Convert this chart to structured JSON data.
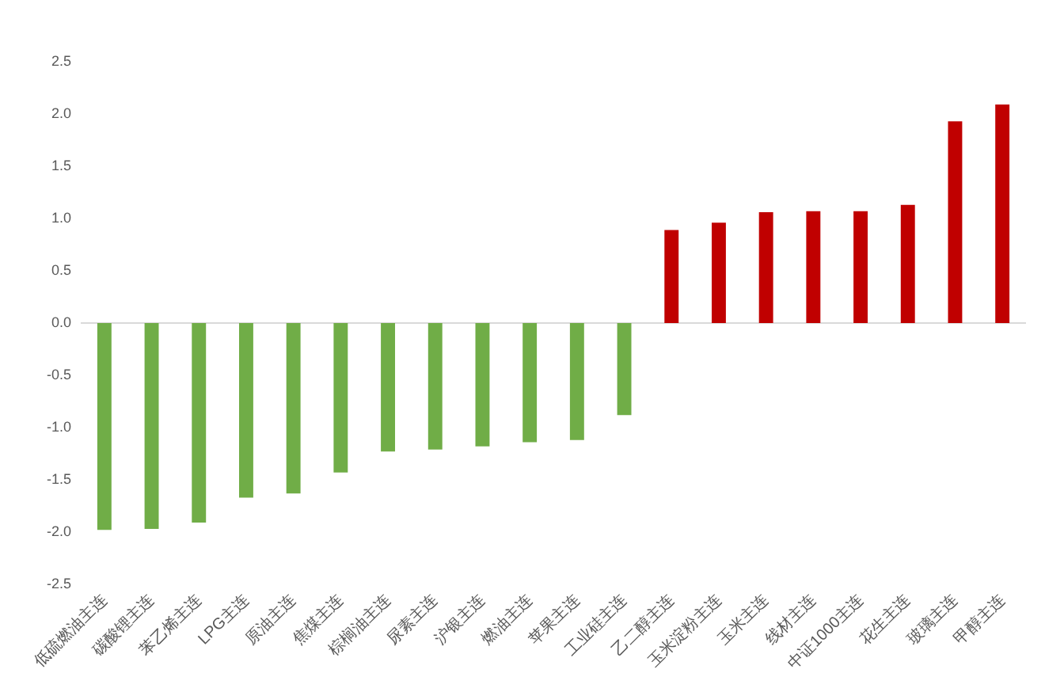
{
  "chart_data": {
    "type": "bar",
    "categories": [
      "低硫燃油主连",
      "碳酸锂主连",
      "苯乙烯主连",
      "LPG主连",
      "原油主连",
      "焦煤主连",
      "棕榈油主连",
      "尿素主连",
      "沪银主连",
      "燃油主连",
      "苹果主连",
      "工业硅主连",
      "乙二醇主连",
      "玉米淀粉主连",
      "玉米主连",
      "线材主连",
      "中证1000主连",
      "花生主连",
      "玻璃主连",
      "甲醇主连"
    ],
    "values": [
      -1.98,
      -1.97,
      -1.91,
      -1.67,
      -1.63,
      -1.43,
      -1.23,
      -1.21,
      -1.18,
      -1.14,
      -1.12,
      -0.88,
      0.89,
      0.96,
      1.06,
      1.07,
      1.07,
      1.13,
      1.93,
      2.09
    ],
    "colors": [
      "#70ad47",
      "#70ad47",
      "#70ad47",
      "#70ad47",
      "#70ad47",
      "#70ad47",
      "#70ad47",
      "#70ad47",
      "#70ad47",
      "#70ad47",
      "#70ad47",
      "#70ad47",
      "#c00000",
      "#c00000",
      "#c00000",
      "#c00000",
      "#c00000",
      "#c00000",
      "#c00000",
      "#c00000"
    ],
    "ylim": [
      -2.5,
      2.5
    ],
    "yticks": [
      -2.5,
      {
        "value": -2,
        "label": "-2.0"
      },
      -1.5,
      {
        "value": -1,
        "label": "-1.0"
      },
      -0.5,
      {
        "value": 0,
        "label": "0.0"
      },
      0.5,
      {
        "value": 1,
        "label": "1.0"
      },
      1.5,
      {
        "value": 2,
        "label": "2.0"
      },
      2.5
    ]
  }
}
